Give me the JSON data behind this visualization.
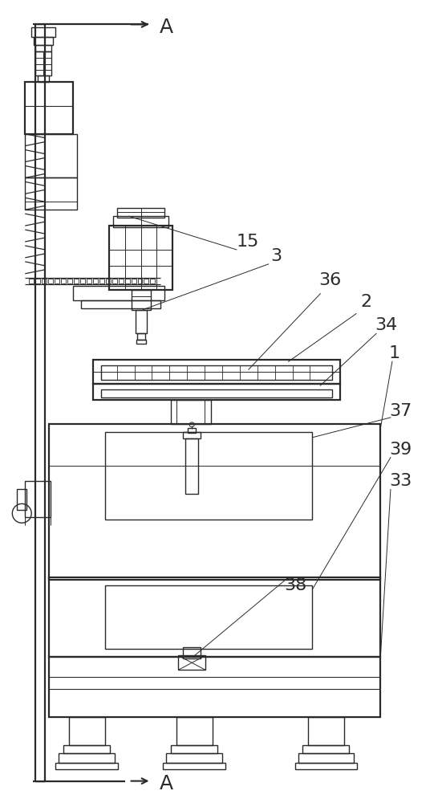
{
  "bg_color": "#ffffff",
  "lc": "#2a2a2a",
  "lw": 1.0,
  "lw2": 1.6,
  "fig_w": 5.51,
  "fig_h": 10.0
}
